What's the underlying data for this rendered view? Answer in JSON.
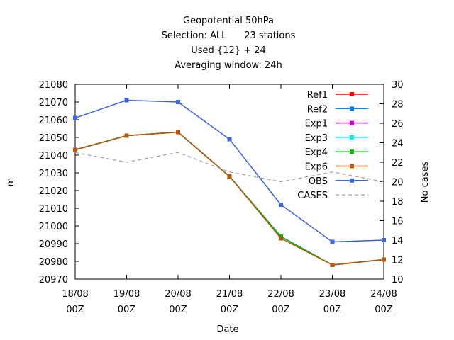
{
  "chart_data": {
    "type": "line",
    "title_lines": [
      "Geopotential 50hPa",
      "Selection: ALL      23 stations",
      "Used {12} + 24",
      "Averaging window: 24h"
    ],
    "xlabel": "Date",
    "ylabel": "m",
    "y2label": "No cases",
    "categories": [
      [
        "18/08",
        "00Z"
      ],
      [
        "19/08",
        "00Z"
      ],
      [
        "20/08",
        "00Z"
      ],
      [
        "21/08",
        "00Z"
      ],
      [
        "22/08",
        "00Z"
      ],
      [
        "23/08",
        "00Z"
      ],
      [
        "24/08",
        "00Z"
      ]
    ],
    "ylim": [
      20970,
      21080
    ],
    "yticks": [
      20970,
      20980,
      20990,
      21000,
      21010,
      21020,
      21030,
      21040,
      21050,
      21060,
      21070,
      21080
    ],
    "y2lim": [
      10,
      30
    ],
    "y2ticks": [
      10,
      12,
      14,
      16,
      18,
      20,
      22,
      24,
      26,
      28,
      30
    ],
    "grid": false,
    "legend_position": "top-right",
    "series": [
      {
        "name": "Ref1",
        "color": "#ff0000",
        "axis": "y",
        "style": "line-marker",
        "values": [
          21043,
          21051,
          21053,
          21028,
          20994,
          20978,
          20981
        ]
      },
      {
        "name": "Ref2",
        "color": "#0080ff",
        "axis": "y",
        "style": "line-marker",
        "values": [
          21043,
          21051,
          21053,
          21028,
          20994,
          20978,
          20981
        ]
      },
      {
        "name": "Exp1",
        "color": "#cc00cc",
        "axis": "y",
        "style": "line-marker",
        "values": [
          21043,
          21051,
          21053,
          21028,
          20994,
          20978,
          20981
        ]
      },
      {
        "name": "Exp3",
        "color": "#00e5e5",
        "axis": "y",
        "style": "line-marker",
        "values": [
          21043,
          21051,
          21053,
          21028,
          20994,
          20978,
          20981
        ]
      },
      {
        "name": "Exp4",
        "color": "#00bb00",
        "axis": "y",
        "style": "line-marker",
        "values": [
          21043,
          21051,
          21053,
          21028,
          20994,
          20978,
          20981
        ]
      },
      {
        "name": "Exp6",
        "color": "#b8550e",
        "axis": "y",
        "style": "line-marker",
        "values": [
          21043,
          21051,
          21053,
          21028,
          20993,
          20978,
          20981
        ]
      },
      {
        "name": "OBS",
        "color": "#3c64dc",
        "axis": "y",
        "style": "line-marker",
        "values": [
          21061,
          21071,
          21070,
          21049,
          21012,
          20991,
          20992
        ]
      },
      {
        "name": "CASES",
        "color": "#a0a0a0",
        "axis": "y2",
        "style": "dashed",
        "values": [
          23,
          22,
          23,
          21,
          20,
          21,
          20
        ]
      }
    ]
  }
}
